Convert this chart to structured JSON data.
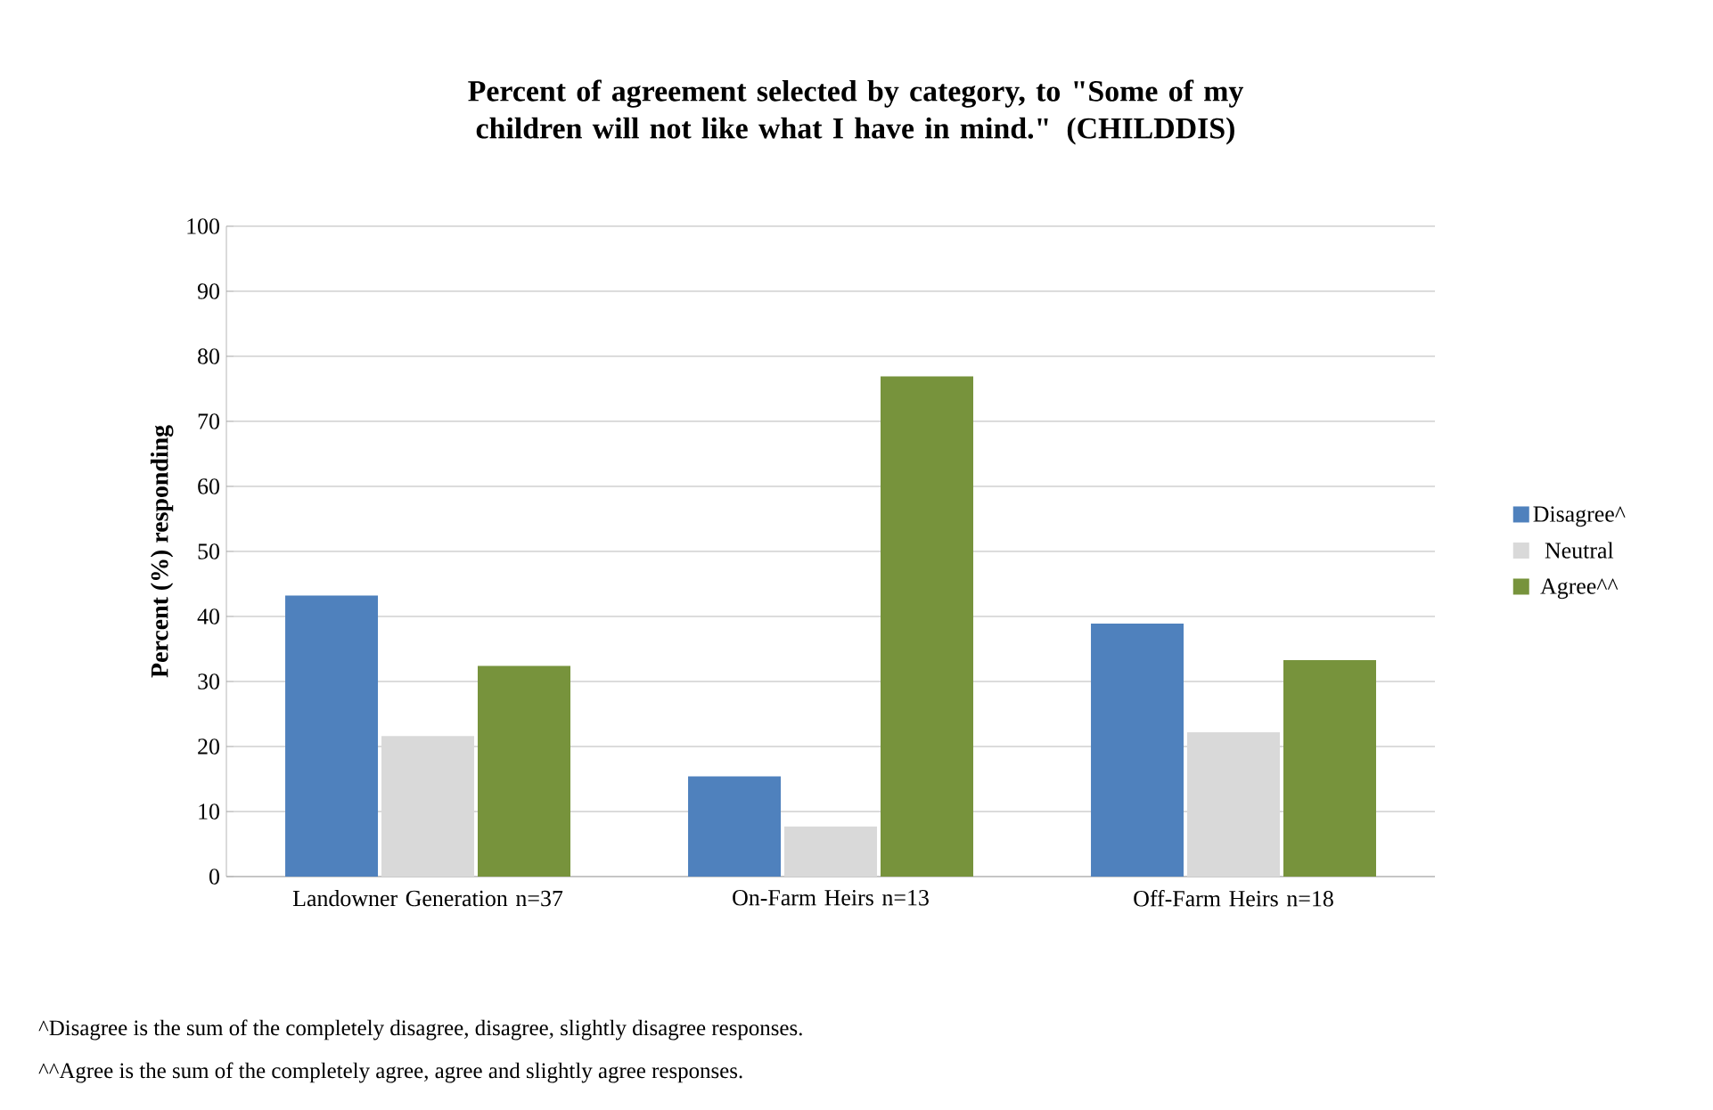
{
  "chart_data": {
    "type": "bar",
    "title": "Percent of agreement selected by category, to \"Some of my children will not like what I have in mind.\" (CHILDDIS)",
    "ylabel": "Percent (%) responding",
    "categories": [
      "Landowner Generation n=37",
      "On-Farm Heirs n=13",
      "Off-Farm Heirs n=18"
    ],
    "series": [
      {
        "name": "Disagree^",
        "color": "#4f81bd",
        "values": [
          43.2,
          15.4,
          38.9
        ]
      },
      {
        "name": "Neutral",
        "color": "#d9d9d9",
        "values": [
          21.6,
          7.7,
          22.2
        ]
      },
      {
        "name": "Agree^^",
        "color": "#77933c",
        "values": [
          32.4,
          76.9,
          33.3
        ]
      }
    ],
    "ylim": [
      0,
      100
    ],
    "yticks": [
      0,
      10,
      20,
      30,
      40,
      50,
      60,
      70,
      80,
      90,
      100
    ],
    "grid": "y",
    "legend": "right",
    "annotations": [
      "^Disagree is the sum of the completely disagree, disagree, slightly disagree responses.",
      "^^Agree is the sum of the completely agree, agree and slightly agree responses."
    ]
  }
}
